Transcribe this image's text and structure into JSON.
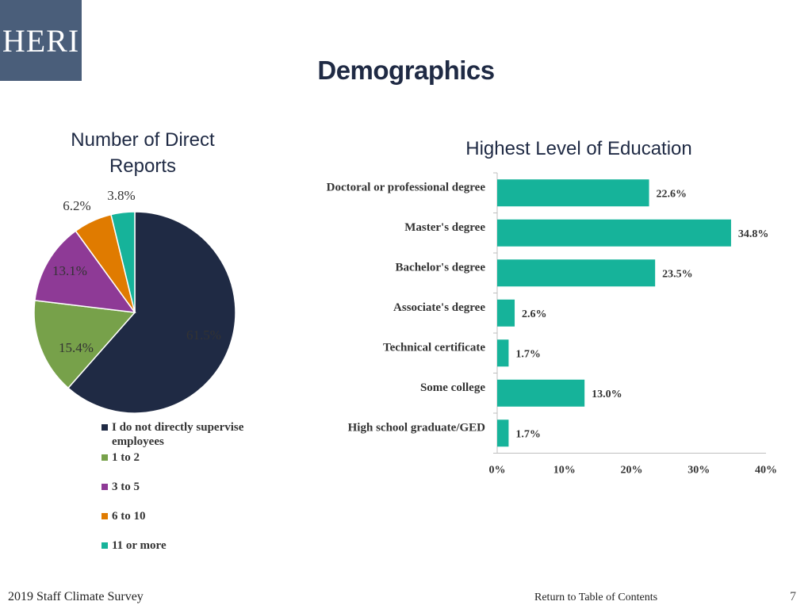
{
  "logo": {
    "text": "HERI"
  },
  "page": {
    "title": "Demographics"
  },
  "chart_data": [
    {
      "type": "pie",
      "title": "Number of Direct Reports",
      "categories": [
        "I do not directly supervise employees",
        "1 to 2",
        "3 to 5",
        "6 to 10",
        "11 or more"
      ],
      "values": [
        61.5,
        15.4,
        13.1,
        6.2,
        3.8
      ],
      "value_labels": [
        "61.5%",
        "15.4%",
        "13.1%",
        "6.2%",
        "3.8%"
      ],
      "colors": [
        "#1f2a44",
        "#77a14a",
        "#8e3a96",
        "#e07b00",
        "#16b39a"
      ],
      "legend": "bottom"
    },
    {
      "type": "bar",
      "orientation": "horizontal",
      "title": "Highest Level of Education",
      "categories": [
        "Doctoral or professional degree",
        "Master's degree",
        "Bachelor's degree",
        "Associate's degree",
        "Technical certificate",
        "Some college",
        "High school graduate/GED"
      ],
      "values": [
        22.6,
        34.8,
        23.5,
        2.6,
        1.7,
        13.0,
        1.7
      ],
      "value_labels": [
        "22.6%",
        "34.8%",
        "23.5%",
        "2.6%",
        "1.7%",
        "13.0%",
        "1.7%"
      ],
      "xlim": [
        0,
        40
      ],
      "xticks": [
        0,
        10,
        20,
        30,
        40
      ],
      "xtick_labels": [
        "0%",
        "10%",
        "20%",
        "30%",
        "40%"
      ],
      "color": "#16b39a",
      "grid": false
    }
  ],
  "footer": {
    "survey": "2019 Staff Climate Survey",
    "toc_link": "Return to Table of Contents",
    "page_number": "7"
  }
}
